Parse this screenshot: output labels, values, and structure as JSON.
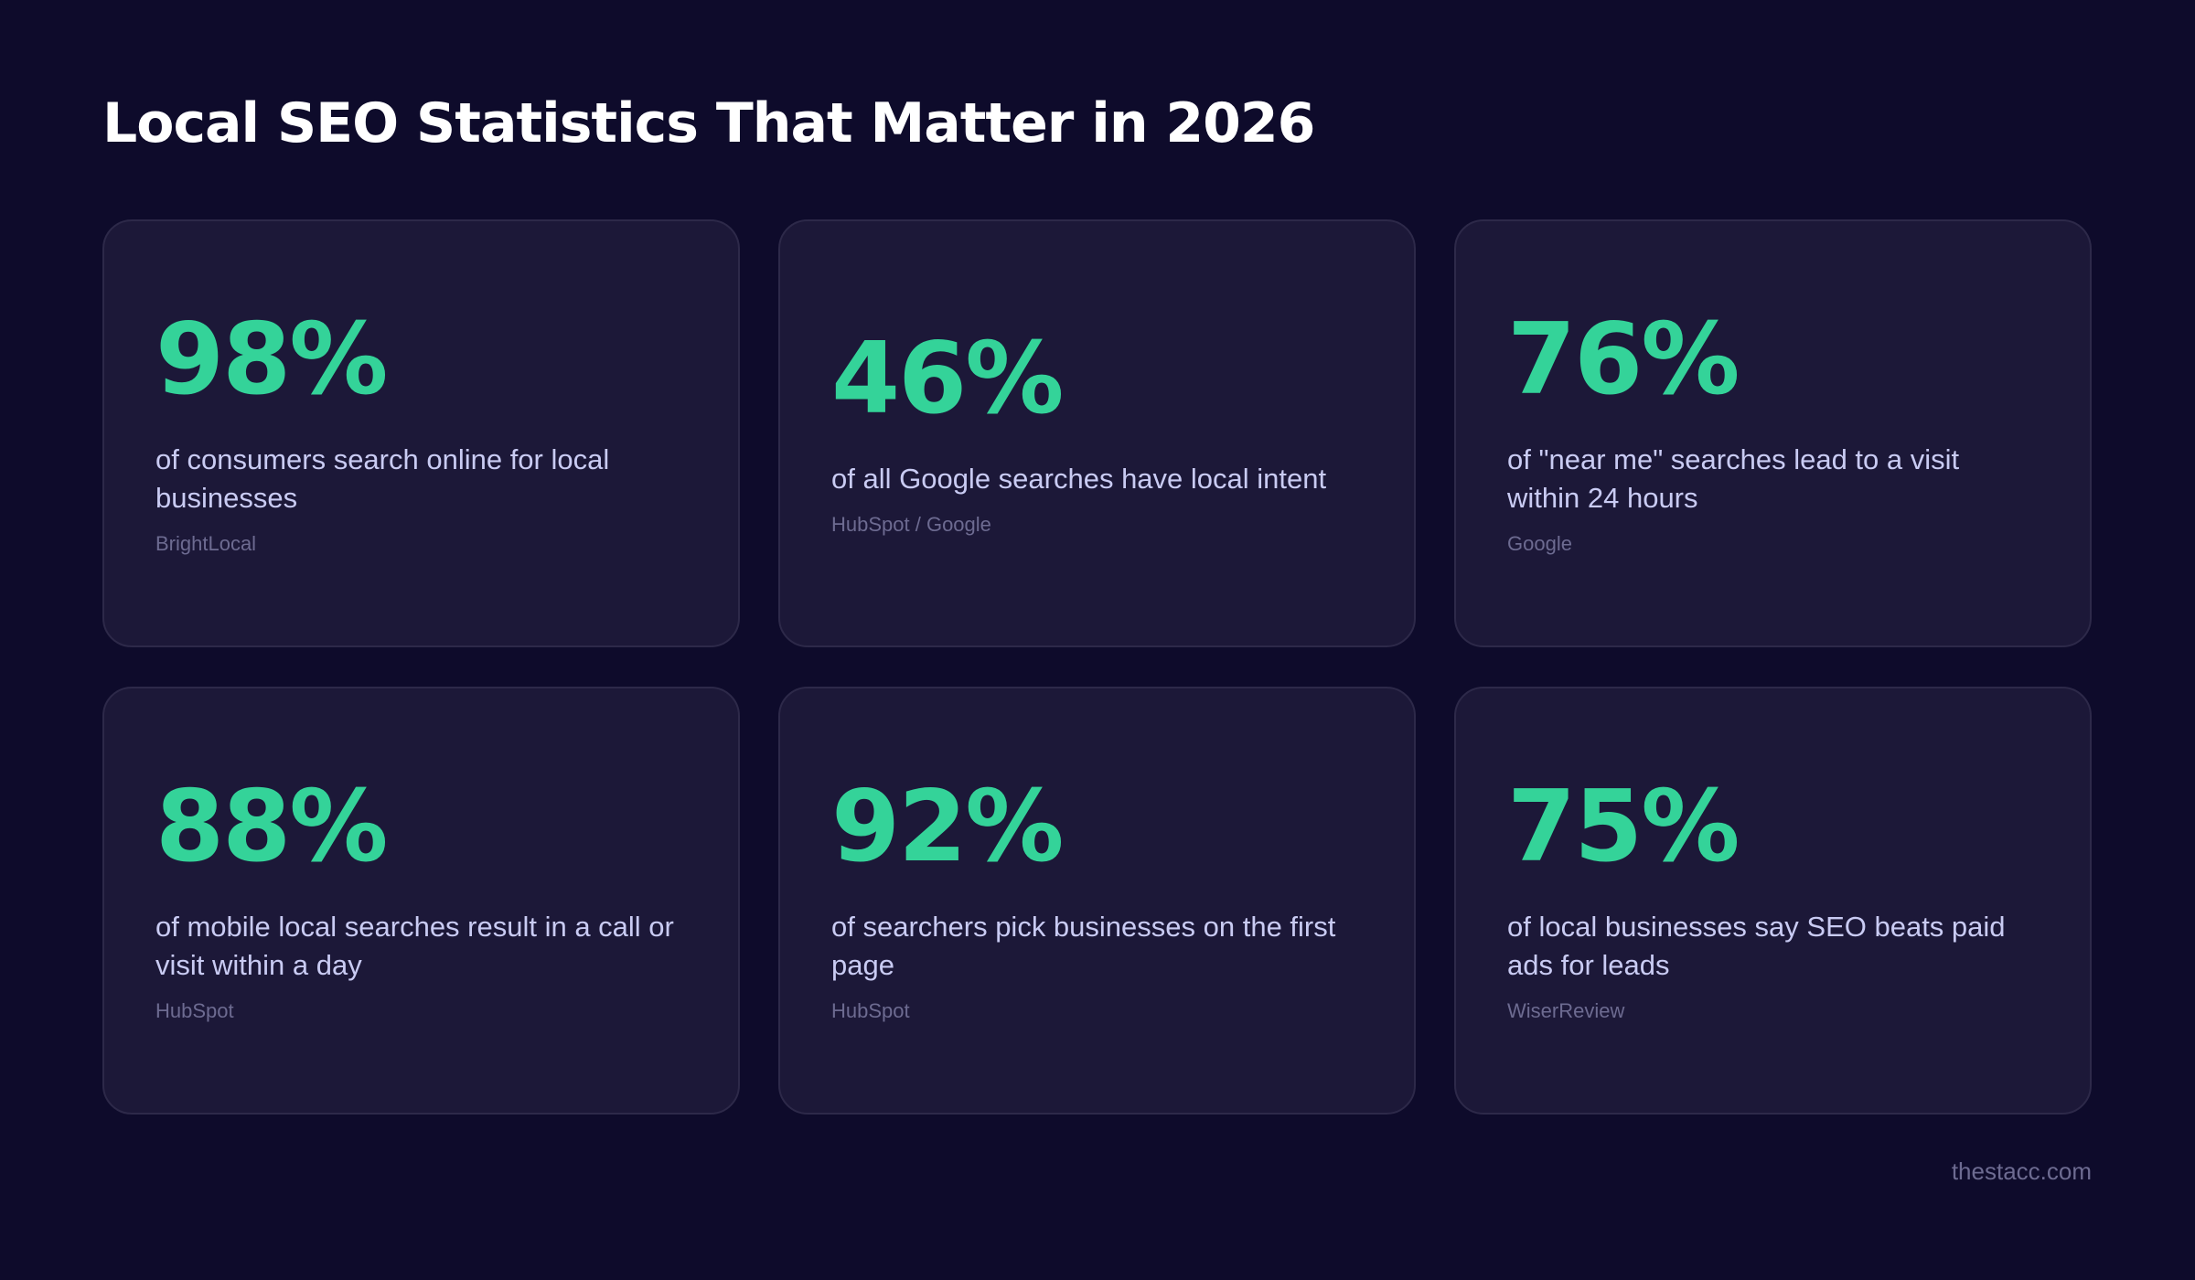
{
  "title": "Local SEO Statistics That Matter in 2026",
  "stats": [
    {
      "value": "98%",
      "description": "of consumers search online for local businesses",
      "source": "BrightLocal"
    },
    {
      "value": "46%",
      "description": "of all Google searches have local intent",
      "source": "HubSpot / Google"
    },
    {
      "value": "76%",
      "description": "of \"near me\" searches lead to a visit within 24 hours",
      "source": "Google"
    },
    {
      "value": "88%",
      "description": "of mobile local searches result in a call or visit within a day",
      "source": "HubSpot"
    },
    {
      "value": "92%",
      "description": "of searchers pick businesses on the first page",
      "source": "HubSpot"
    },
    {
      "value": "75%",
      "description": "of local businesses say SEO beats paid ads for leads",
      "source": "WiserReview"
    }
  ],
  "footer": "thestacc.com",
  "colors": {
    "background": "#0e0b2b",
    "card": "#1c1838",
    "accent": "#34d399"
  }
}
